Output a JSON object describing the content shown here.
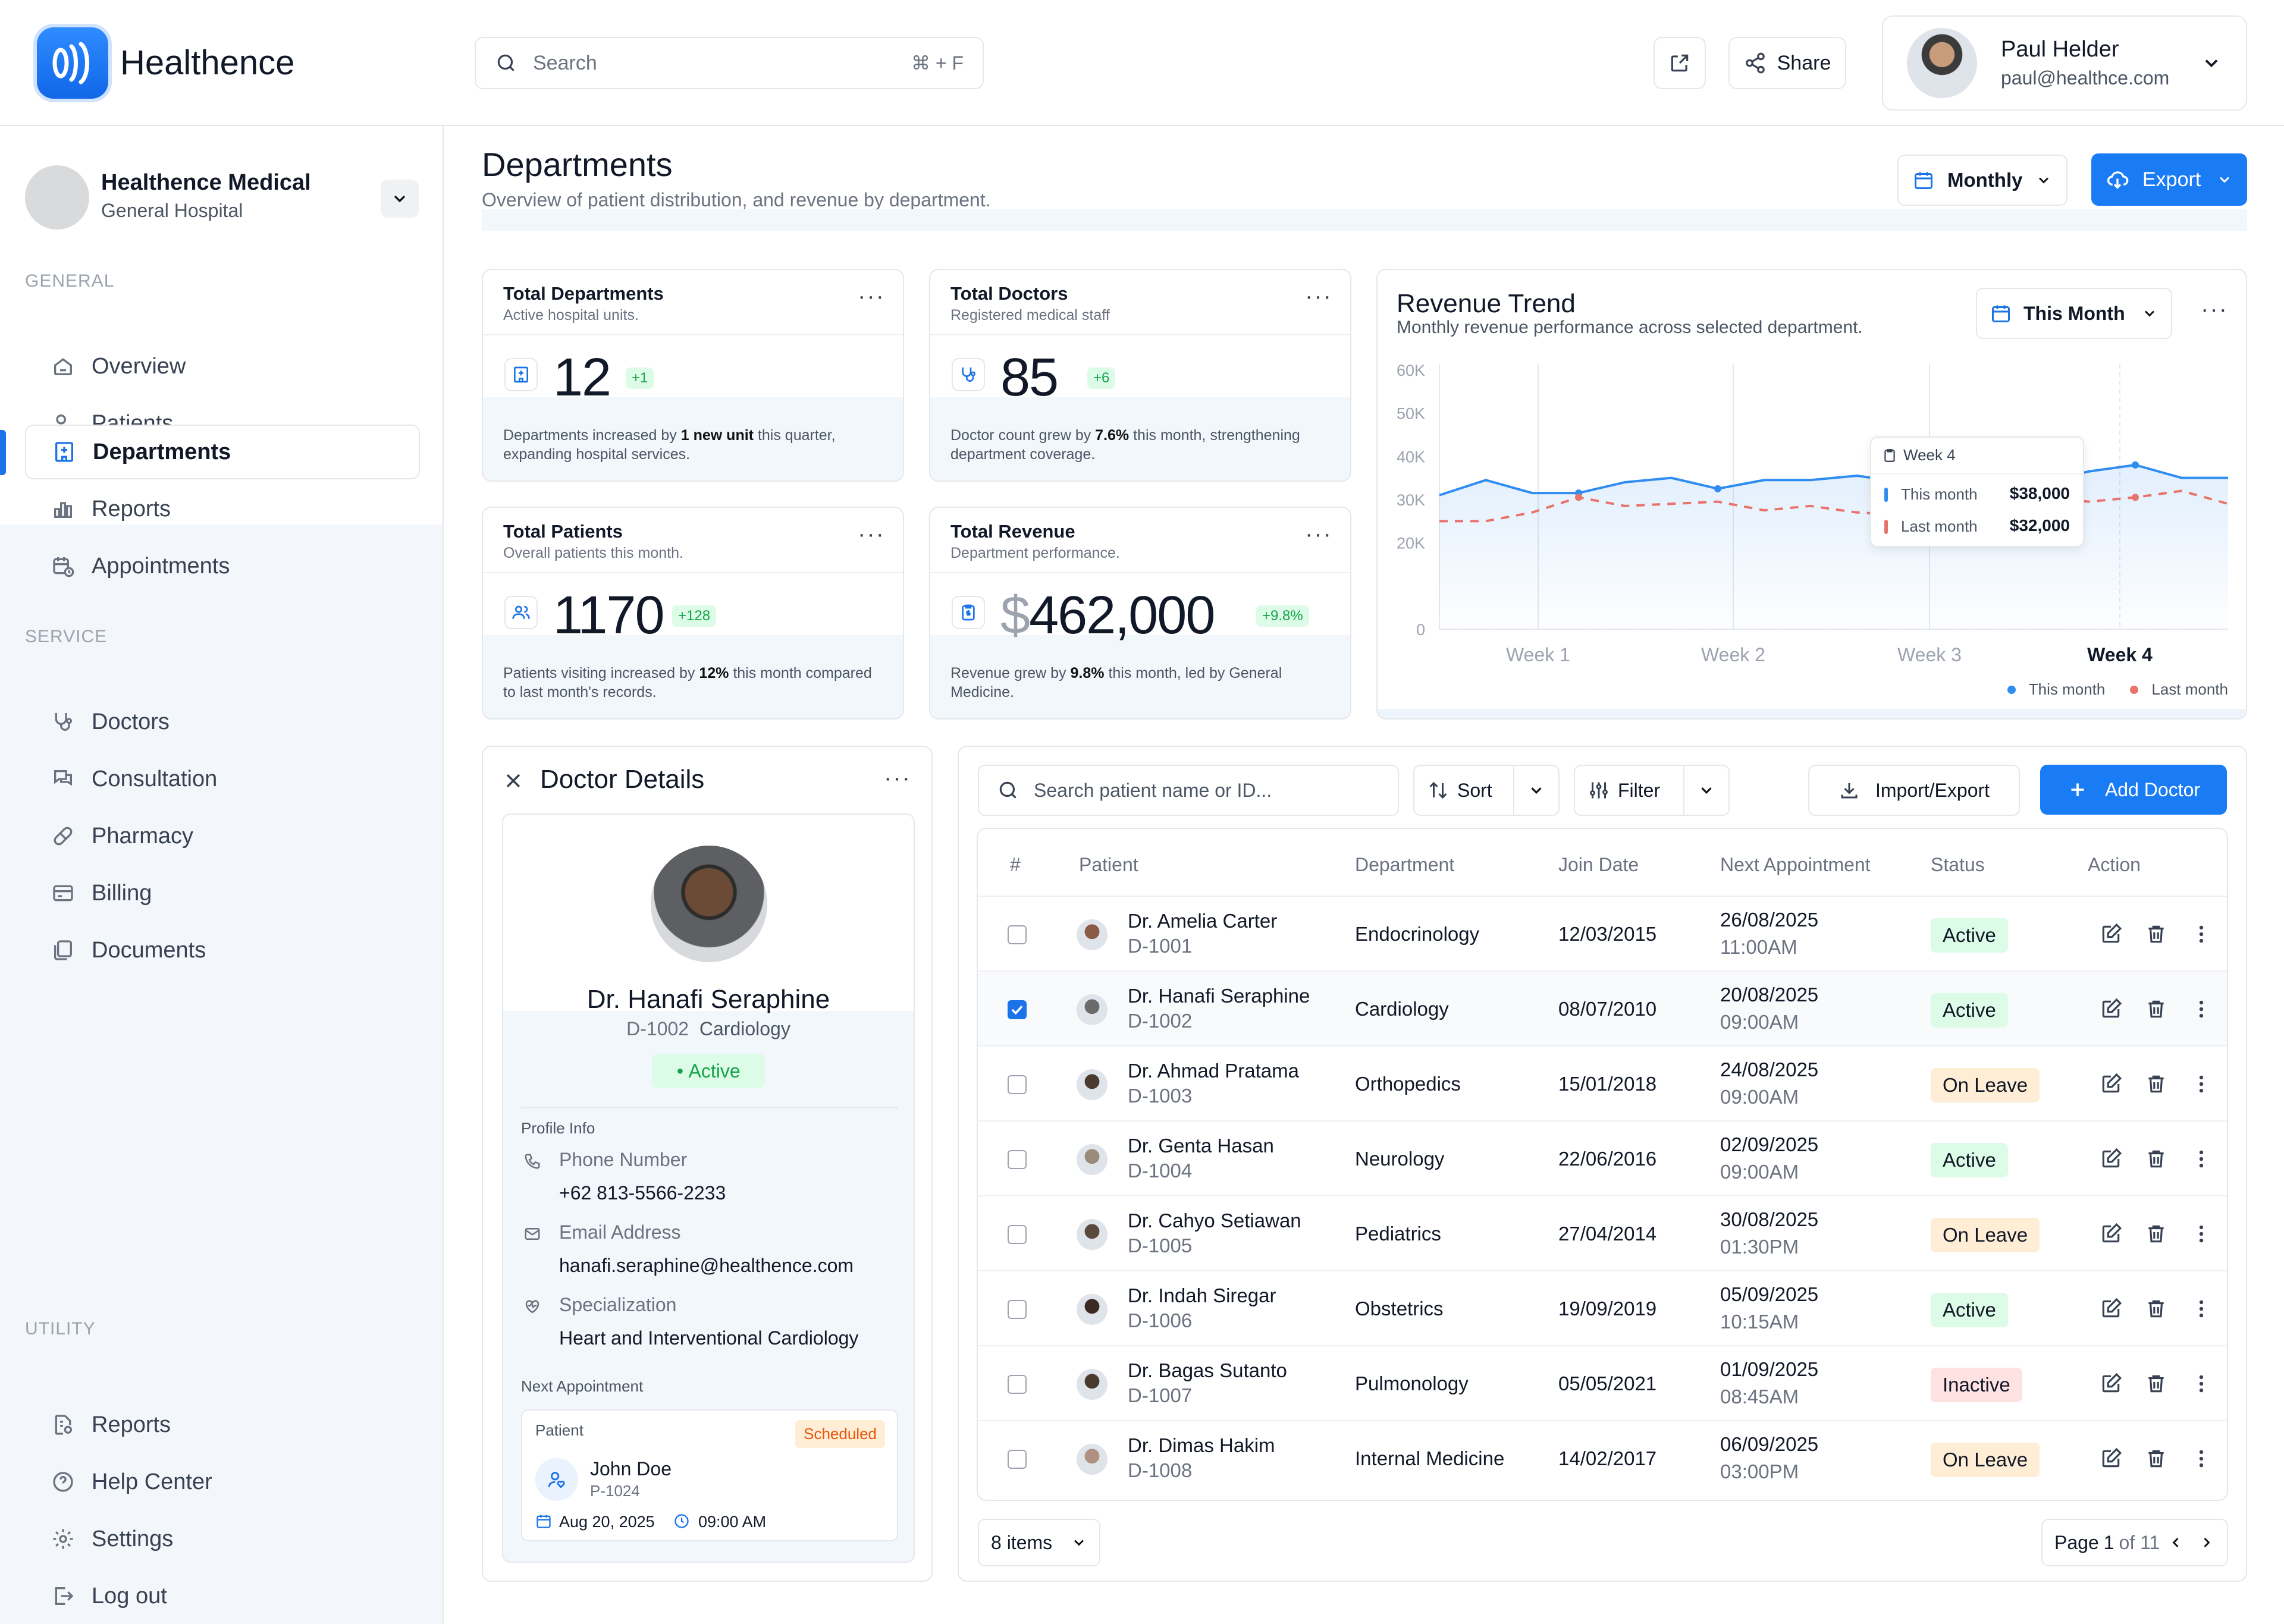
{
  "app": {
    "name": "Healthence"
  },
  "search": {
    "placeholder": "Search",
    "shortcut": "⌘ + F"
  },
  "header": {
    "share_label": "Share"
  },
  "user": {
    "name": "Paul Helder",
    "email": "paul@healthce.com"
  },
  "org": {
    "name": "Healthence Medical",
    "sub": "General Hospital"
  },
  "sidebar": {
    "general_label": "GENERAL",
    "general": [
      {
        "label": "Overview",
        "icon": "home-icon"
      },
      {
        "label": "Patients",
        "icon": "user-heart-icon"
      },
      {
        "label": "Departments",
        "icon": "hospital-icon",
        "active": true
      },
      {
        "label": "Reports",
        "icon": "bar-chart-icon"
      },
      {
        "label": "Appointments",
        "icon": "calendar-clock-icon"
      }
    ],
    "service_label": "SERVICE",
    "service": [
      {
        "label": "Doctors",
        "icon": "stethoscope-icon"
      },
      {
        "label": "Consultation",
        "icon": "chat-icon"
      },
      {
        "label": "Pharmacy",
        "icon": "pill-icon"
      },
      {
        "label": "Billing",
        "icon": "card-icon"
      },
      {
        "label": "Documents",
        "icon": "documents-icon"
      }
    ],
    "utility_label": "UTILITY",
    "utility": [
      {
        "label": "Reports",
        "icon": "report-icon"
      },
      {
        "label": "Help Center",
        "icon": "help-icon"
      },
      {
        "label": "Settings",
        "icon": "gear-icon"
      },
      {
        "label": "Log out",
        "icon": "logout-icon"
      }
    ]
  },
  "page": {
    "title": "Departments",
    "subtitle": "Overview of patient distribution, and revenue by department.",
    "period": "Monthly",
    "export_label": "Export"
  },
  "kpis": [
    {
      "title": "Total Departments",
      "sub": "Active hospital units.",
      "value": "12",
      "badge": "+1",
      "desc_pre": "Departments increased by ",
      "desc_bold": "1 new unit",
      "desc_post": " this quarter, expanding hospital services."
    },
    {
      "title": "Total Doctors",
      "sub": "Registered medical staff",
      "value": "85",
      "badge": "+6",
      "desc_pre": "Doctor count grew by ",
      "desc_bold": "7.6%",
      "desc_post": " this month, strengthening department coverage."
    },
    {
      "title": "Total Patients",
      "sub": "Overall patients this month.",
      "value": "1170",
      "badge": "+128",
      "desc_pre": "Patients visiting increased by ",
      "desc_bold": "12%",
      "desc_post": " this month compared to last month's records."
    },
    {
      "title": "Total Revenue",
      "sub": "Department performance.",
      "currency": "$",
      "value": "462,000",
      "badge": "+9.8%",
      "desc_pre": "Revenue grew by ",
      "desc_bold": "9.8%",
      "desc_post": " this month, led by General Medicine."
    }
  ],
  "revenue": {
    "title": "Revenue Trend",
    "subtitle": "Monthly revenue performance across selected department.",
    "period": "This Month",
    "tooltip": {
      "title": "Week 4",
      "this_label": "This month",
      "this_value": "$38,000",
      "last_label": "Last month",
      "last_value": "$32,000"
    }
  },
  "chart_data": {
    "type": "line",
    "x_labels": [
      "Week 1",
      "Week 2",
      "Week 3",
      "Week 4"
    ],
    "y_ticks": [
      "0",
      "20K",
      "30K",
      "40K",
      "50K",
      "60K"
    ],
    "ylim": [
      0,
      60000
    ],
    "series": [
      {
        "name": "This month",
        "color": "#2f8cf0",
        "values": [
          31000,
          34500,
          31500,
          31500,
          34000,
          35000,
          32500,
          34500,
          34500,
          35500,
          34000,
          35500,
          37500,
          34000,
          36500,
          38000,
          35000,
          35000
        ]
      },
      {
        "name": "Last month",
        "color": "#e8736b",
        "values": [
          25000,
          25000,
          27000,
          30500,
          28500,
          29000,
          29500,
          27500,
          28500,
          27000,
          26500,
          27000,
          28000,
          30500,
          29500,
          30500,
          32000,
          29000
        ]
      }
    ],
    "highlight": {
      "label": "Week 4",
      "this": 38000,
      "last": 32000
    },
    "legend": "bottom-right"
  },
  "doctor": {
    "panel_title": "Doctor Details",
    "name": "Dr. Hanafi Seraphine",
    "id": "D-1002",
    "dept": "Cardiology",
    "status": "Active",
    "profile_label": "Profile Info",
    "phone_label": "Phone Number",
    "phone": "+62 813-5566-2233",
    "email_label": "Email Address",
    "email": "hanafi.seraphine@healthence.com",
    "spec_label": "Specialization",
    "spec": "Heart and Interventional Cardiology",
    "next_label": "Next Appointment",
    "appt": {
      "patient_label": "Patient",
      "status": "Scheduled",
      "patient": "John Doe",
      "patient_id": "P-1024",
      "date": "Aug 20, 2025",
      "time": "09:00 AM"
    }
  },
  "table": {
    "search_placeholder": "Search patient name or ID...",
    "sort_label": "Sort",
    "filter_label": "Filter",
    "import_label": "Import/Export",
    "add_label": "Add Doctor",
    "headers": [
      "#",
      "Patient",
      "Department",
      "Join Date",
      "Next Appointment",
      "Status",
      "Action"
    ],
    "rows": [
      {
        "name": "Dr. Amelia Carter",
        "id": "D-1001",
        "dept": "Endocrinology",
        "join": "12/03/2015",
        "date": "26/08/2025",
        "time": "11:00AM",
        "status": "Active",
        "checked": false
      },
      {
        "name": "Dr. Hanafi Seraphine",
        "id": "D-1002",
        "dept": "Cardiology",
        "join": "08/07/2010",
        "date": "20/08/2025",
        "time": "09:00AM",
        "status": "Active",
        "checked": true
      },
      {
        "name": "Dr. Ahmad Pratama",
        "id": "D-1003",
        "dept": "Orthopedics",
        "join": "15/01/2018",
        "date": "24/08/2025",
        "time": "09:00AM",
        "status": "On Leave",
        "checked": false
      },
      {
        "name": "Dr. Genta Hasan",
        "id": "D-1004",
        "dept": "Neurology",
        "join": "22/06/2016",
        "date": "02/09/2025",
        "time": "09:00AM",
        "status": "Active",
        "checked": false
      },
      {
        "name": "Dr. Cahyo Setiawan",
        "id": "D-1005",
        "dept": "Pediatrics",
        "join": "27/04/2014",
        "date": "30/08/2025",
        "time": "01:30PM",
        "status": "On Leave",
        "checked": false
      },
      {
        "name": "Dr. Indah Siregar",
        "id": "D-1006",
        "dept": "Obstetrics",
        "join": "19/09/2019",
        "date": "05/09/2025",
        "time": "10:15AM",
        "status": "Active",
        "checked": false
      },
      {
        "name": "Dr. Bagas Sutanto",
        "id": "D-1007",
        "dept": "Pulmonology",
        "join": "05/05/2021",
        "date": "01/09/2025",
        "time": "08:45AM",
        "status": "Inactive",
        "checked": false
      },
      {
        "name": "Dr. Dimas Hakim",
        "id": "D-1008",
        "dept": "Internal Medicine",
        "join": "14/02/2017",
        "date": "06/09/2025",
        "time": "03:00PM",
        "status": "On Leave",
        "checked": false
      }
    ],
    "page_size": "8 items",
    "page_word": "Page",
    "page": "1",
    "page_of": "of 11"
  }
}
